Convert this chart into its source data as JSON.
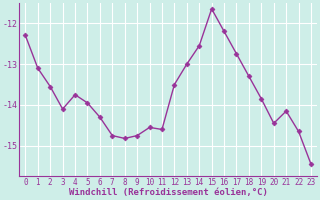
{
  "x": [
    0,
    1,
    2,
    3,
    4,
    5,
    6,
    7,
    8,
    9,
    10,
    11,
    12,
    13,
    14,
    15,
    16,
    17,
    18,
    19,
    20,
    21,
    22,
    23
  ],
  "y": [
    -12.3,
    -13.1,
    -13.55,
    -14.1,
    -13.75,
    -13.95,
    -14.3,
    -14.75,
    -14.82,
    -14.75,
    -14.55,
    -14.6,
    -13.5,
    -13.0,
    -12.55,
    -11.65,
    -12.2,
    -12.75,
    -13.3,
    -13.85,
    -14.45,
    -14.15,
    -14.65,
    -15.45
  ],
  "line_color": "#993399",
  "marker": "D",
  "marker_size": 2.5,
  "xlabel": "Windchill (Refroidissement éolien,°C)",
  "xlabel_fontsize": 6.5,
  "xlabel_color": "#993399",
  "tick_color": "#993399",
  "tick_fontsize": 5.5,
  "ylim": [
    -15.75,
    -11.5
  ],
  "yticks": [
    -15,
    -14,
    -13,
    -12
  ],
  "background_color": "#ceeee8",
  "grid_color": "#ffffff",
  "line_width": 1.0,
  "spine_color": "#993399"
}
